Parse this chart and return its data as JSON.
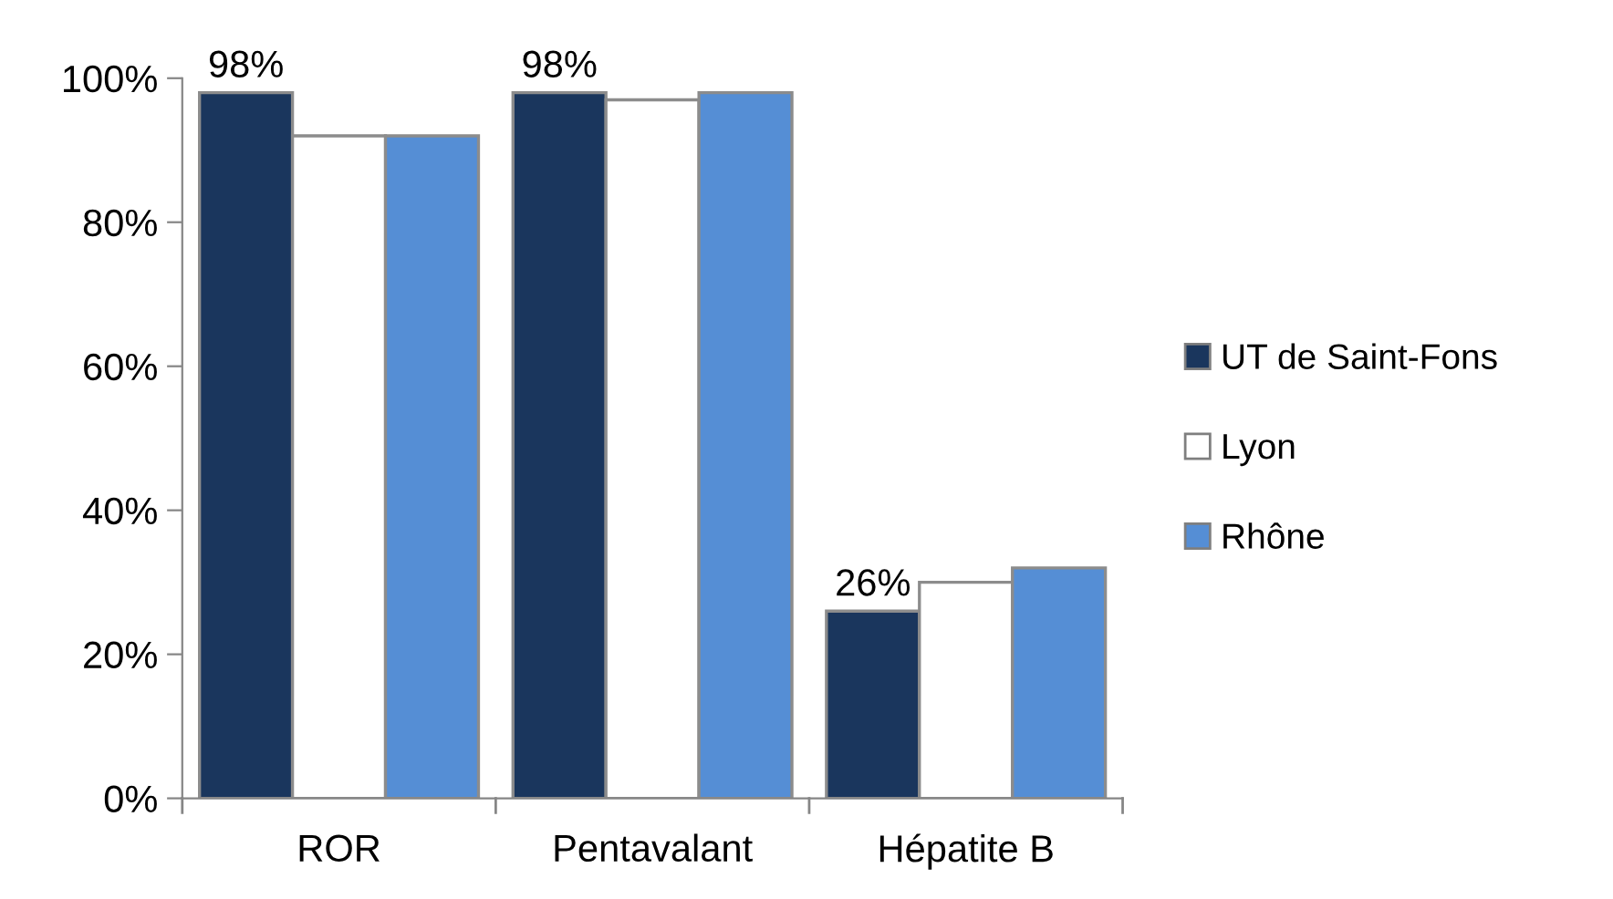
{
  "chart_data": {
    "type": "bar",
    "categories": [
      "ROR",
      "Pentavalant",
      "Hépatite B"
    ],
    "series": [
      {
        "name": "UT de Saint-Fons",
        "color": "#1a365d",
        "values": [
          98,
          98,
          26
        ],
        "value_labels": [
          "98%",
          "98%",
          "26%"
        ]
      },
      {
        "name": "Lyon",
        "color": "#ffffff",
        "values": [
          92,
          97,
          30
        ]
      },
      {
        "name": "Rhône",
        "color": "#558ed5",
        "values": [
          92,
          98,
          32
        ]
      }
    ],
    "ylim": [
      0,
      100
    ],
    "yticks": [
      {
        "value": 0,
        "label": "0%"
      },
      {
        "value": 20,
        "label": "20%"
      },
      {
        "value": 40,
        "label": "40%"
      },
      {
        "value": 60,
        "label": "60%"
      },
      {
        "value": 80,
        "label": "80%"
      },
      {
        "value": 100,
        "label": "100%"
      }
    ],
    "grid": false,
    "legend": "right"
  }
}
